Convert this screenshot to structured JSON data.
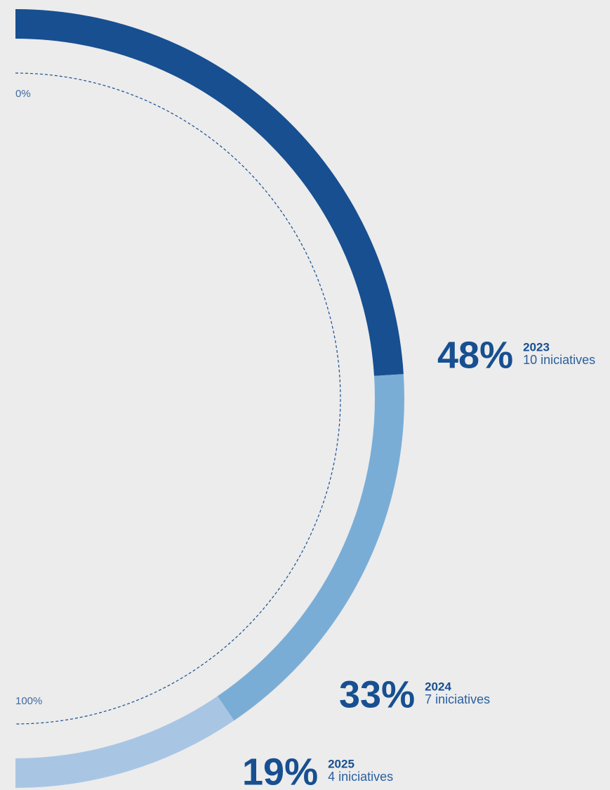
{
  "chart_data": {
    "type": "semi-donut",
    "categories": [
      "2023",
      "2024",
      "2025"
    ],
    "values": [
      48,
      33,
      19
    ],
    "value_labels": [
      "48%",
      "33%",
      "19%"
    ],
    "details": [
      "10 iniciatives",
      "7 iniciatives",
      "4 iniciatives"
    ],
    "colors": [
      "#174f91",
      "#7aadd6",
      "#a8c6e4"
    ],
    "ylim": [
      0,
      100
    ],
    "yticks": [
      {
        "value": 0,
        "label": "0%"
      },
      {
        "value": 100,
        "label": "100%"
      }
    ]
  }
}
